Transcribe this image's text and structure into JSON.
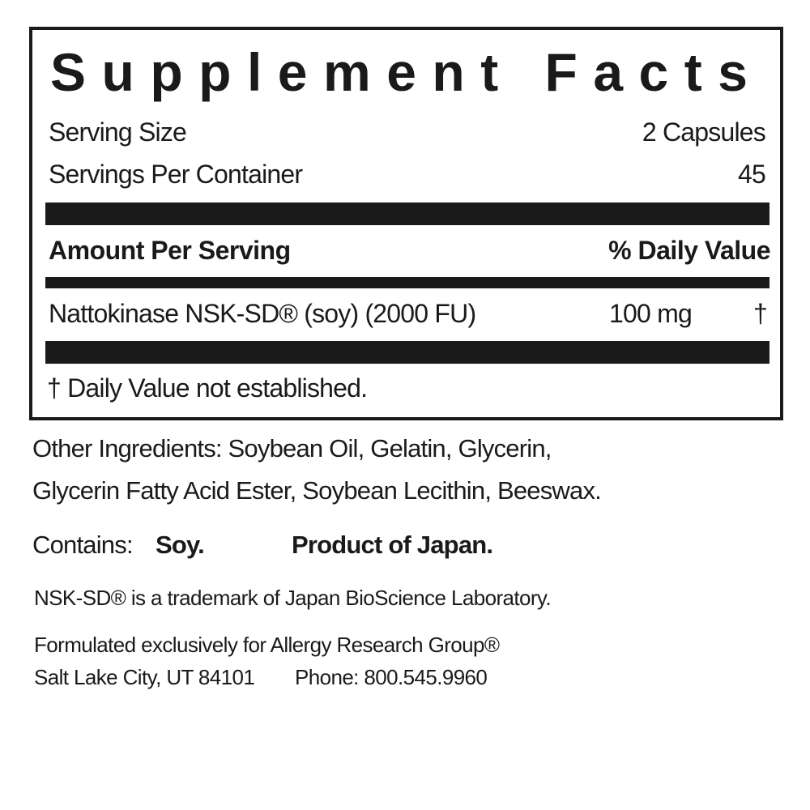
{
  "panel": {
    "title": "Supplement Facts",
    "serving_size_label": "Serving Size",
    "serving_size_value": "2 Capsules",
    "servings_label": "Servings Per Container",
    "servings_value": "45",
    "amount_header": "Amount Per Serving",
    "dv_header": "% Daily Value",
    "ingredients": [
      {
        "name": "Nattokinase NSK-SD® (soy) (2000 FU)",
        "amount": "100 mg",
        "dv": "†"
      }
    ],
    "footnote": "† Daily Value not established."
  },
  "other_ingredients": {
    "line1": "Other Ingredients: Soybean Oil, Gelatin, Glycerin,",
    "line2": "Glycerin Fatty Acid Ester, Soybean Lecithin, Beeswax."
  },
  "contains": {
    "label": "Contains:",
    "value": "Soy.",
    "origin": "Product of Japan."
  },
  "trademark": "NSK-SD® is a trademark of Japan BioScience Laboratory.",
  "formulated": "Formulated exclusively for Allergy Research Group®",
  "address": "Salt Lake City, UT 84101",
  "phone": "Phone: 800.545.9960"
}
